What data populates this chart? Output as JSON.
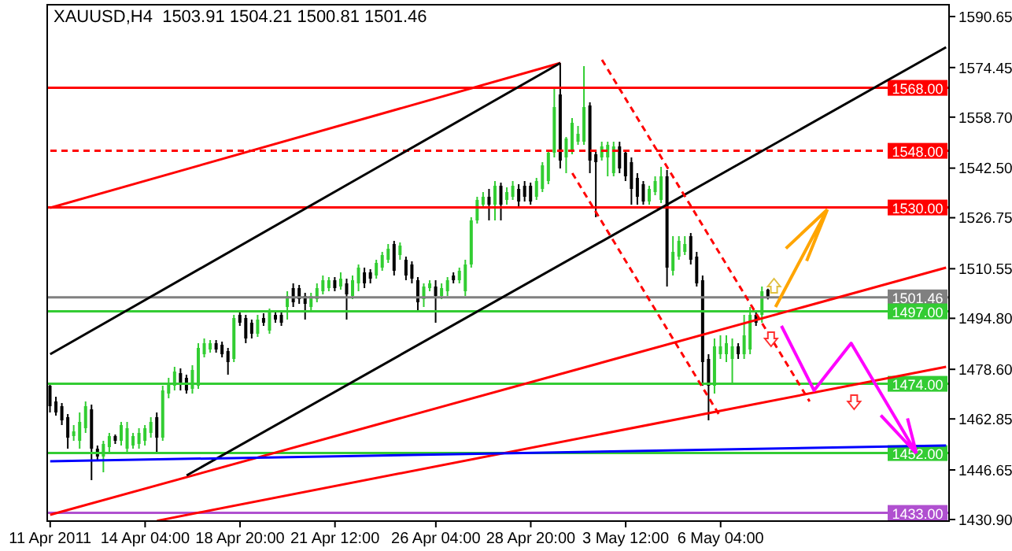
{
  "chart_data": {
    "type": "candlestick",
    "title": "XAUUSD,H4  1503.91 1504.21 1500.81 1501.46",
    "categories": [
      "11 Apr 2011",
      null,
      null,
      null,
      null,
      null,
      null,
      null,
      null,
      null,
      null,
      null,
      null,
      null,
      null,
      null,
      "14 Apr 04:00",
      null,
      null,
      null,
      null,
      null,
      null,
      null,
      null,
      null,
      null,
      null,
      null,
      null,
      null,
      null,
      "18 Apr 20:00",
      null,
      null,
      null,
      null,
      null,
      null,
      null,
      null,
      null,
      null,
      null,
      null,
      null,
      null,
      null,
      "21 Apr 12:00",
      null,
      null,
      null,
      null,
      null,
      null,
      null,
      null,
      null,
      null,
      null,
      null,
      null,
      null,
      null,
      null,
      "26 Apr 04:00",
      null,
      null,
      null,
      null,
      null,
      null,
      null,
      null,
      null,
      null,
      null,
      null,
      null,
      null,
      null,
      "28 Apr 20:00",
      null,
      null,
      null,
      null,
      null,
      null,
      null,
      null,
      null,
      null,
      null,
      null,
      null,
      null,
      null,
      "3 May 12:00",
      null,
      null,
      null,
      null,
      null,
      null,
      null,
      null,
      null,
      null,
      null,
      null,
      null,
      null,
      null,
      "6 May 04:00",
      null,
      null,
      null,
      null,
      null,
      null,
      null,
      null,
      null,
      null,
      null,
      null,
      null,
      null,
      null,
      null,
      null,
      null,
      null,
      null,
      null,
      null,
      null,
      null,
      null,
      null,
      null,
      null,
      null,
      null,
      null,
      null,
      null,
      null,
      null,
      null,
      null,
      null
    ],
    "ohlc": [
      [
        1473.4,
        1474.4,
        1464.9,
        1466.9
      ],
      [
        1468.4,
        1469.9,
        1463.9,
        1464.9
      ],
      [
        1466.9,
        1467.9,
        1460.9,
        1462.4
      ],
      [
        1463.4,
        1464.4,
        1453.4,
        1456.9
      ],
      [
        1457.4,
        1460.9,
        1455.9,
        1458.9
      ],
      [
        1455.9,
        1464.9,
        1453.4,
        1461.9
      ],
      [
        1459.9,
        1468.4,
        1458.4,
        1466.9
      ],
      [
        1465.9,
        1467.4,
        1443.4,
        1453.4
      ],
      [
        1453.4,
        1454.4,
        1449.9,
        1450.9
      ],
      [
        1450.9,
        1455.9,
        1445.9,
        1454.9
      ],
      [
        1453.9,
        1458.4,
        1452.4,
        1457.4
      ],
      [
        1457.4,
        1457.9,
        1454.9,
        1455.9
      ],
      [
        1455.9,
        1461.9,
        1454.4,
        1460.9
      ],
      [
        1453.4,
        1461.9,
        1452.4,
        1459.9
      ],
      [
        1454.4,
        1458.4,
        1453.4,
        1457.4
      ],
      [
        1454.9,
        1459.9,
        1453.4,
        1458.4
      ],
      [
        1455.9,
        1460.9,
        1454.4,
        1459.9
      ],
      [
        1458.4,
        1463.4,
        1456.9,
        1461.9
      ],
      [
        1463.4,
        1464.9,
        1452.4,
        1456.9
      ],
      [
        1456.9,
        1473.4,
        1455.9,
        1471.9
      ],
      [
        1470.9,
        1475.9,
        1469.4,
        1474.4
      ],
      [
        1473.4,
        1479.4,
        1471.9,
        1477.9
      ],
      [
        1477.4,
        1478.9,
        1471.9,
        1474.4
      ],
      [
        1475.9,
        1476.9,
        1470.9,
        1471.9
      ],
      [
        1472.4,
        1479.9,
        1470.9,
        1478.4
      ],
      [
        1473.4,
        1486.9,
        1472.4,
        1485.4
      ],
      [
        1483.4,
        1488.4,
        1482.4,
        1486.9
      ],
      [
        1484.9,
        1487.9,
        1483.9,
        1486.9
      ],
      [
        1486.9,
        1487.9,
        1483.9,
        1484.9
      ],
      [
        1486.4,
        1487.4,
        1482.4,
        1483.4
      ],
      [
        1484.4,
        1485.4,
        1476.9,
        1480.9
      ],
      [
        1481.9,
        1495.9,
        1480.9,
        1494.9
      ],
      [
        1495.9,
        1497.4,
        1492.4,
        1493.4
      ],
      [
        1494.9,
        1495.9,
        1486.9,
        1488.4
      ],
      [
        1493.4,
        1494.4,
        1488.4,
        1489.9
      ],
      [
        1489.9,
        1495.9,
        1488.9,
        1494.4
      ],
      [
        1494.9,
        1496.4,
        1492.4,
        1493.4
      ],
      [
        1490.9,
        1497.9,
        1489.9,
        1496.9
      ],
      [
        1495.9,
        1496.9,
        1493.4,
        1494.4
      ],
      [
        1495.9,
        1497.4,
        1492.4,
        1493.4
      ],
      [
        1498.4,
        1503.4,
        1494.4,
        1501.9
      ],
      [
        1504.4,
        1505.9,
        1498.4,
        1499.9
      ],
      [
        1504.4,
        1505.4,
        1499.4,
        1500.9
      ],
      [
        1501.9,
        1502.9,
        1494.4,
        1499.4
      ],
      [
        1498.4,
        1502.9,
        1497.4,
        1501.9
      ],
      [
        1500.9,
        1505.9,
        1499.9,
        1504.4
      ],
      [
        1503.4,
        1508.4,
        1502.4,
        1506.9
      ],
      [
        1504.4,
        1507.9,
        1503.4,
        1506.9
      ],
      [
        1506.9,
        1507.9,
        1503.4,
        1504.4
      ],
      [
        1504.9,
        1509.4,
        1503.9,
        1507.4
      ],
      [
        1505.9,
        1507.4,
        1494.4,
        1502.4
      ],
      [
        1501.9,
        1508.4,
        1500.9,
        1506.9
      ],
      [
        1505.9,
        1511.9,
        1503.4,
        1510.9
      ],
      [
        1509.4,
        1510.9,
        1504.4,
        1505.9
      ],
      [
        1509.4,
        1510.4,
        1505.9,
        1507.4
      ],
      [
        1508.4,
        1513.4,
        1507.4,
        1512.4
      ],
      [
        1510.9,
        1515.9,
        1509.9,
        1514.9
      ],
      [
        1513.4,
        1518.4,
        1512.4,
        1516.9
      ],
      [
        1518.4,
        1519.4,
        1508.4,
        1509.9
      ],
      [
        1514.9,
        1518.9,
        1513.4,
        1517.9
      ],
      [
        1513.4,
        1514.4,
        1506.9,
        1508.4
      ],
      [
        1511.9,
        1512.9,
        1505.9,
        1507.4
      ],
      [
        1506.9,
        1507.9,
        1496.9,
        1499.9
      ],
      [
        1500.9,
        1505.9,
        1498.4,
        1504.9
      ],
      [
        1504.4,
        1506.9,
        1503.4,
        1505.9
      ],
      [
        1504.9,
        1506.9,
        1493.4,
        1501.9
      ],
      [
        1501.9,
        1505.9,
        1500.9,
        1504.4
      ],
      [
        1503.4,
        1507.9,
        1501.9,
        1506.9
      ],
      [
        1508.4,
        1509.4,
        1505.9,
        1506.9
      ],
      [
        1506.9,
        1510.9,
        1505.9,
        1509.9
      ],
      [
        1503.4,
        1513.4,
        1501.9,
        1511.9
      ],
      [
        1511.9,
        1526.9,
        1510.9,
        1525.9
      ],
      [
        1525.9,
        1533.4,
        1524.9,
        1532.4
      ],
      [
        1530.9,
        1534.9,
        1529.9,
        1533.4
      ],
      [
        1533.4,
        1535.9,
        1525.9,
        1530.9
      ],
      [
        1530.9,
        1538.4,
        1525.9,
        1536.9
      ],
      [
        1536.9,
        1537.9,
        1525.9,
        1530.9
      ],
      [
        1532.4,
        1536.4,
        1530.9,
        1534.9
      ],
      [
        1533.4,
        1538.4,
        1532.4,
        1536.9
      ],
      [
        1535.9,
        1537.4,
        1530.4,
        1531.9
      ],
      [
        1536.9,
        1538.4,
        1531.9,
        1533.4
      ],
      [
        1536.9,
        1537.9,
        1530.9,
        1531.9
      ],
      [
        1533.4,
        1539.4,
        1532.4,
        1538.4
      ],
      [
        1535.9,
        1544.4,
        1534.9,
        1543.4
      ],
      [
        1538.4,
        1547.9,
        1537.4,
        1547.4
      ],
      [
        1547.4,
        1568.4,
        1545.9,
        1561.9
      ],
      [
        1565.9,
        1575.9,
        1542.4,
        1544.9
      ],
      [
        1545.9,
        1552.4,
        1540.9,
        1551.9
      ],
      [
        1548.4,
        1558.4,
        1546.9,
        1556.9
      ],
      [
        1550.9,
        1555.9,
        1549.9,
        1553.4
      ],
      [
        1550.9,
        1574.9,
        1549.9,
        1561.9
      ],
      [
        1562.4,
        1563.4,
        1540.9,
        1544.9
      ],
      [
        1546.9,
        1548.4,
        1526.9,
        1544.4
      ],
      [
        1545.9,
        1550.9,
        1544.9,
        1549.4
      ],
      [
        1545.9,
        1550.9,
        1539.9,
        1549.9
      ],
      [
        1540.9,
        1550.9,
        1539.9,
        1549.4
      ],
      [
        1549.4,
        1550.9,
        1540.9,
        1542.4
      ],
      [
        1547.4,
        1548.4,
        1538.4,
        1539.9
      ],
      [
        1544.4,
        1545.9,
        1530.9,
        1535.9
      ],
      [
        1539.4,
        1540.9,
        1530.9,
        1533.4
      ],
      [
        1537.4,
        1538.4,
        1530.9,
        1531.9
      ],
      [
        1531.9,
        1536.9,
        1530.9,
        1535.9
      ],
      [
        1534.9,
        1539.9,
        1533.9,
        1538.4
      ],
      [
        1532.4,
        1542.9,
        1531.4,
        1539.9
      ],
      [
        1539.9,
        1541.9,
        1504.9,
        1510.9
      ],
      [
        1509.9,
        1520.9,
        1508.4,
        1515.9
      ],
      [
        1514.4,
        1520.9,
        1513.4,
        1519.4
      ],
      [
        1515.9,
        1520.9,
        1514.9,
        1518.4
      ],
      [
        1520.9,
        1521.9,
        1511.9,
        1513.4
      ],
      [
        1514.4,
        1515.9,
        1504.9,
        1505.9
      ],
      [
        1506.9,
        1508.4,
        1473.4,
        1480.9
      ],
      [
        1481.9,
        1483.4,
        1462.4,
        1473.4
      ],
      [
        1473.4,
        1488.4,
        1470.9,
        1485.9
      ],
      [
        1483.4,
        1489.4,
        1481.9,
        1485.9
      ],
      [
        1483.4,
        1489.4,
        1480.9,
        1486.9
      ],
      [
        1481.9,
        1488.4,
        1474.4,
        1485.9
      ],
      [
        1485.9,
        1486.9,
        1481.9,
        1483.4
      ],
      [
        1483.4,
        1495.9,
        1481.9,
        1489.4
      ],
      [
        1484.9,
        1498.4,
        1483.4,
        1495.9
      ],
      [
        1495.9,
        1496.9,
        1492.4,
        1493.4
      ],
      [
        1495.9,
        1504.9,
        1493.4,
        1503.4
      ],
      [
        1503.91,
        1504.21,
        1500.81,
        1501.46
      ],
      null,
      null,
      null,
      null,
      null,
      null,
      null,
      null,
      null,
      null,
      null,
      null,
      null,
      null,
      null,
      null,
      null,
      null,
      null,
      null,
      null,
      null,
      null,
      null,
      null,
      null,
      null,
      null,
      null,
      null
    ],
    "series": [
      {
        "type": "line",
        "color": "#ff0000",
        "values": [
          1529.9,
          null,
          null,
          null,
          null,
          null,
          null,
          null,
          null,
          null,
          null,
          null,
          null,
          null,
          null,
          null,
          null,
          null,
          null,
          null,
          null,
          null,
          null,
          null,
          null,
          null,
          null,
          null,
          null,
          null,
          null,
          null,
          null,
          null,
          null,
          null,
          null,
          null,
          null,
          null,
          null,
          null,
          null,
          null,
          null,
          null,
          null,
          null,
          null,
          null,
          null,
          null,
          null,
          null,
          null,
          null,
          null,
          null,
          null,
          null,
          null,
          null,
          null,
          null,
          null,
          null,
          null,
          null,
          null,
          null,
          null,
          null,
          null,
          null,
          null,
          null,
          null,
          null,
          null,
          null,
          null,
          null,
          null,
          null,
          null,
          null,
          1575.9,
          null,
          null,
          null,
          null,
          null,
          null,
          null,
          null,
          null,
          null,
          null,
          null,
          null,
          null,
          null,
          null,
          null,
          null,
          null,
          null,
          null,
          null,
          null,
          null,
          null,
          null,
          null,
          null,
          null,
          null,
          null,
          null,
          null,
          null,
          null,
          null,
          null,
          null,
          null,
          null,
          null,
          null,
          null,
          null,
          null,
          null,
          null,
          null,
          null,
          null,
          null,
          null,
          null,
          null,
          null,
          null,
          null,
          null,
          null,
          null,
          null,
          null,
          null,
          null,
          null
        ]
      },
      {
        "type": "line",
        "color": "#ff0000",
        "values": [
          1432.4,
          null,
          null,
          null,
          null,
          null,
          null,
          null,
          null,
          null,
          null,
          null,
          null,
          null,
          null,
          null,
          null,
          null,
          null,
          null,
          null,
          null,
          null,
          null,
          null,
          null,
          null,
          null,
          null,
          null,
          null,
          null,
          null,
          null,
          null,
          null,
          null,
          null,
          null,
          null,
          null,
          null,
          null,
          null,
          null,
          null,
          null,
          null,
          null,
          null,
          null,
          null,
          null,
          null,
          null,
          null,
          null,
          null,
          null,
          null,
          null,
          null,
          null,
          null,
          null,
          null,
          null,
          null,
          null,
          null,
          null,
          null,
          null,
          null,
          null,
          null,
          null,
          null,
          null,
          null,
          null,
          null,
          null,
          null,
          null,
          null,
          null,
          null,
          null,
          null,
          null,
          null,
          null,
          null,
          null,
          null,
          null,
          null,
          null,
          null,
          null,
          null,
          null,
          null,
          null,
          null,
          null,
          null,
          null,
          null,
          null,
          null,
          null,
          null,
          null,
          null,
          null,
          null,
          null,
          null,
          null,
          null,
          null,
          null,
          null,
          null,
          null,
          null,
          null,
          null,
          null,
          null,
          null,
          null,
          null,
          null,
          null,
          null,
          null,
          null,
          null,
          null,
          null,
          null,
          null,
          null,
          null,
          null,
          null,
          null,
          null,
          1510.9
        ]
      },
      {
        "type": "line",
        "color": "#ff0000",
        "values": [
          null,
          null,
          null,
          null,
          null,
          null,
          null,
          null,
          null,
          null,
          null,
          null,
          null,
          null,
          null,
          null,
          null,
          null,
          1430.5,
          null,
          null,
          null,
          null,
          null,
          null,
          null,
          null,
          null,
          null,
          null,
          null,
          null,
          null,
          null,
          null,
          null,
          null,
          null,
          null,
          null,
          null,
          null,
          null,
          null,
          null,
          null,
          null,
          null,
          null,
          null,
          null,
          null,
          null,
          null,
          null,
          null,
          null,
          null,
          null,
          null,
          null,
          null,
          null,
          null,
          null,
          null,
          null,
          null,
          null,
          null,
          null,
          null,
          null,
          null,
          null,
          null,
          null,
          null,
          null,
          null,
          null,
          null,
          null,
          null,
          null,
          null,
          null,
          null,
          null,
          null,
          null,
          null,
          null,
          null,
          null,
          null,
          null,
          null,
          null,
          null,
          null,
          null,
          null,
          null,
          null,
          null,
          null,
          null,
          null,
          null,
          null,
          null,
          null,
          null,
          null,
          null,
          null,
          null,
          null,
          null,
          null,
          null,
          null,
          null,
          null,
          null,
          null,
          null,
          null,
          null,
          null,
          null,
          null,
          null,
          null,
          null,
          null,
          null,
          null,
          null,
          null,
          null,
          null,
          null,
          null,
          null,
          null,
          null,
          null,
          null,
          null,
          1479.4
        ]
      },
      {
        "type": "line",
        "color": "#000000",
        "values": [
          1483.4,
          null,
          null,
          null,
          null,
          null,
          null,
          null,
          null,
          null,
          null,
          null,
          null,
          null,
          null,
          null,
          null,
          null,
          null,
          null,
          null,
          null,
          null,
          null,
          null,
          null,
          null,
          null,
          null,
          null,
          null,
          null,
          null,
          null,
          null,
          null,
          null,
          null,
          null,
          null,
          null,
          null,
          null,
          null,
          null,
          null,
          null,
          null,
          null,
          null,
          null,
          null,
          null,
          null,
          null,
          null,
          null,
          null,
          null,
          null,
          null,
          null,
          null,
          null,
          null,
          null,
          null,
          null,
          null,
          null,
          null,
          null,
          null,
          null,
          null,
          null,
          null,
          null,
          null,
          null,
          null,
          null,
          null,
          null,
          null,
          null,
          1575.9,
          null,
          null,
          null,
          null,
          null,
          null,
          null,
          null,
          null,
          null,
          null,
          null,
          null,
          null,
          null,
          null,
          null,
          null,
          null,
          null,
          null,
          null,
          null,
          null,
          null,
          null,
          null,
          null,
          null,
          null,
          null,
          null,
          null,
          null,
          null,
          null,
          null,
          null,
          null,
          null,
          null,
          null,
          null,
          null,
          null,
          null,
          null,
          null,
          null,
          null,
          null,
          null,
          null,
          null,
          null,
          null,
          null,
          null,
          null,
          null,
          null,
          null,
          null,
          null,
          null
        ]
      },
      {
        "type": "line",
        "color": "#000000",
        "values": [
          null,
          null,
          null,
          null,
          null,
          null,
          null,
          null,
          null,
          null,
          null,
          null,
          null,
          null,
          null,
          null,
          null,
          null,
          null,
          null,
          null,
          null,
          null,
          1444.9,
          null,
          null,
          null,
          null,
          null,
          null,
          null,
          null,
          null,
          null,
          null,
          null,
          null,
          null,
          null,
          null,
          null,
          null,
          null,
          null,
          null,
          null,
          null,
          null,
          null,
          null,
          null,
          null,
          null,
          null,
          null,
          null,
          null,
          null,
          null,
          null,
          null,
          null,
          null,
          null,
          null,
          null,
          null,
          null,
          null,
          null,
          null,
          null,
          null,
          null,
          null,
          null,
          null,
          null,
          null,
          null,
          null,
          null,
          null,
          null,
          null,
          null,
          null,
          null,
          null,
          null,
          null,
          null,
          null,
          null,
          null,
          null,
          null,
          null,
          null,
          null,
          null,
          null,
          null,
          null,
          null,
          null,
          null,
          null,
          null,
          null,
          null,
          null,
          null,
          null,
          null,
          null,
          null,
          null,
          null,
          null,
          null,
          null,
          null,
          null,
          null,
          null,
          null,
          null,
          null,
          null,
          null,
          null,
          null,
          null,
          null,
          null,
          null,
          null,
          null,
          null,
          null,
          null,
          null,
          null,
          null,
          null,
          null,
          null,
          null,
          null,
          null,
          1580.9
        ]
      },
      {
        "type": "line",
        "color": "#0000ff",
        "values": [
          1449.4,
          null,
          null,
          null,
          null,
          null,
          null,
          null,
          null,
          null,
          null,
          null,
          null,
          null,
          null,
          null,
          null,
          null,
          null,
          null,
          null,
          null,
          null,
          null,
          null,
          null,
          null,
          null,
          null,
          null,
          null,
          null,
          null,
          null,
          null,
          null,
          null,
          null,
          null,
          null,
          null,
          null,
          null,
          null,
          null,
          null,
          null,
          null,
          null,
          null,
          null,
          null,
          null,
          null,
          null,
          null,
          null,
          null,
          null,
          null,
          null,
          null,
          null,
          null,
          null,
          null,
          null,
          null,
          null,
          null,
          null,
          null,
          null,
          null,
          null,
          null,
          null,
          null,
          null,
          null,
          null,
          null,
          null,
          null,
          null,
          null,
          null,
          null,
          null,
          null,
          null,
          null,
          null,
          null,
          null,
          null,
          null,
          null,
          null,
          null,
          null,
          null,
          null,
          null,
          null,
          null,
          null,
          null,
          null,
          null,
          null,
          null,
          null,
          null,
          null,
          null,
          null,
          null,
          null,
          null,
          null,
          null,
          null,
          null,
          null,
          null,
          null,
          null,
          null,
          null,
          null,
          null,
          null,
          null,
          null,
          null,
          null,
          null,
          null,
          null,
          null,
          null,
          null,
          null,
          null,
          null,
          null,
          null,
          null,
          null,
          null,
          1454.4
        ]
      },
      {
        "type": "line",
        "color": "#ff0000",
        "line_style": "dashed",
        "values": [
          null,
          null,
          null,
          null,
          null,
          null,
          null,
          null,
          null,
          null,
          null,
          null,
          null,
          null,
          null,
          null,
          null,
          null,
          null,
          null,
          null,
          null,
          null,
          null,
          null,
          null,
          null,
          null,
          null,
          null,
          null,
          null,
          null,
          null,
          null,
          null,
          null,
          null,
          null,
          null,
          null,
          null,
          null,
          null,
          null,
          null,
          null,
          null,
          null,
          null,
          null,
          null,
          null,
          null,
          null,
          null,
          null,
          null,
          null,
          null,
          null,
          null,
          null,
          null,
          null,
          null,
          null,
          null,
          null,
          null,
          null,
          null,
          null,
          null,
          null,
          null,
          null,
          null,
          null,
          null,
          null,
          null,
          null,
          null,
          null,
          null,
          null,
          null,
          null,
          null,
          null,
          null,
          null,
          1576.9,
          null,
          null,
          null,
          null,
          null,
          null,
          null,
          null,
          null,
          null,
          null,
          null,
          null,
          null,
          null,
          null,
          null,
          null,
          null,
          null,
          null,
          null,
          null,
          null,
          null,
          null,
          null,
          null,
          null,
          null,
          null,
          null,
          null,
          null,
          1468.4,
          null,
          null,
          null,
          null,
          null,
          null,
          null,
          null,
          null,
          null,
          null,
          null,
          null,
          null,
          null,
          null,
          null,
          null,
          null,
          null,
          null,
          null,
          null
        ]
      },
      {
        "type": "line",
        "color": "#ff0000",
        "line_style": "dashed",
        "values": [
          null,
          null,
          null,
          null,
          null,
          null,
          null,
          null,
          null,
          null,
          null,
          null,
          null,
          null,
          null,
          null,
          null,
          null,
          null,
          null,
          null,
          null,
          null,
          null,
          null,
          null,
          null,
          null,
          null,
          null,
          null,
          null,
          null,
          null,
          null,
          null,
          null,
          null,
          null,
          null,
          null,
          null,
          null,
          null,
          null,
          null,
          null,
          null,
          null,
          null,
          null,
          null,
          null,
          null,
          null,
          null,
          null,
          null,
          null,
          null,
          null,
          null,
          null,
          null,
          null,
          null,
          null,
          null,
          null,
          null,
          null,
          null,
          null,
          null,
          null,
          null,
          null,
          null,
          null,
          null,
          null,
          null,
          null,
          null,
          null,
          null,
          null,
          null,
          1540.9,
          null,
          null,
          null,
          null,
          null,
          null,
          null,
          null,
          null,
          null,
          null,
          null,
          null,
          null,
          null,
          null,
          null,
          null,
          null,
          null,
          null,
          null,
          null,
          null,
          1463.4,
          null,
          null,
          null,
          null,
          null,
          null,
          null,
          null,
          null,
          null,
          null,
          null,
          null,
          null,
          null,
          null,
          null,
          null,
          null,
          null,
          null,
          null,
          null,
          null,
          null,
          null,
          null,
          null,
          null,
          null,
          null,
          null,
          null,
          null,
          null,
          null,
          null,
          null
        ]
      }
    ],
    "ylim": [
      1430.4,
      1594.4
    ],
    "yticks": [
      1590.65,
      1574.45,
      {
        "value": 1558.7,
        "label": "1558.70"
      },
      {
        "value": 1542.5,
        "label": "1542.50"
      },
      1526.75,
      1510.55,
      {
        "value": 1494.8,
        "label": "1494.80"
      },
      {
        "value": 1478.6,
        "label": "1478.60"
      },
      1462.85,
      1446.65,
      {
        "value": 1430.9,
        "label": "1430.90"
      }
    ],
    "ref_lines": [
      {
        "axis": "y",
        "value": 1568,
        "label": "1568.00",
        "color": "#ff0000"
      },
      {
        "axis": "y",
        "value": 1548,
        "label": "1548.00",
        "color": "#ff0000",
        "line_style": "dashed"
      },
      {
        "axis": "y",
        "value": 1530,
        "label": "1530.00",
        "color": "#ff0000"
      },
      {
        "axis": "y",
        "value": 1501.46,
        "label": "1501.46",
        "color": "#808080"
      },
      {
        "axis": "y",
        "value": 1497,
        "label": "1497.00",
        "color": "#33cc33"
      },
      {
        "axis": "y",
        "value": 1474,
        "label": "1474.00",
        "color": "#33cc33"
      },
      {
        "axis": "y",
        "value": 1452,
        "label": "1452.00",
        "color": "#33cc33"
      },
      {
        "axis": "y",
        "value": 1433,
        "label": "1433.00",
        "color": "#b050d0"
      }
    ]
  }
}
